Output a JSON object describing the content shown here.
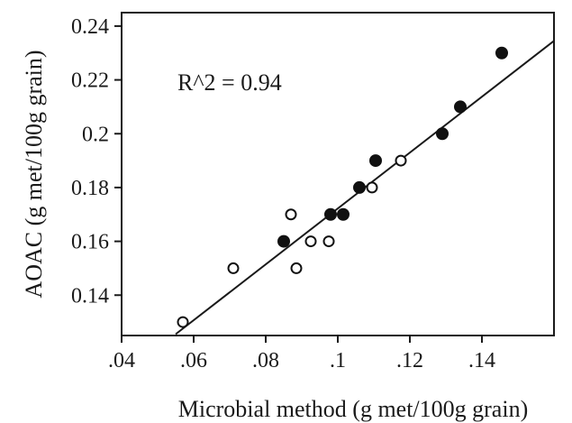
{
  "chart_data": {
    "type": "scatter",
    "title": "",
    "xlabel": "Microbial method (g met/100g grain)",
    "ylabel": "AOAC (g met/100g grain)",
    "xlim": [
      0.04,
      0.16
    ],
    "ylim": [
      0.125,
      0.245
    ],
    "x_ticks": [
      0.04,
      0.06,
      0.08,
      0.1,
      0.12,
      0.14
    ],
    "x_tick_labels": [
      ".04",
      ".06",
      ".08",
      ".1",
      ".12",
      ".14"
    ],
    "y_ticks": [
      0.14,
      0.16,
      0.18,
      0.2,
      0.22,
      0.24
    ],
    "y_tick_labels": [
      "0.14",
      "0.16",
      "0.18",
      "0.2",
      "0.22",
      "0.24"
    ],
    "annotation": "R^2 = 0.94",
    "grid": false,
    "series": [
      {
        "marker": "filled",
        "color": "#111111",
        "points": [
          {
            "x": 0.085,
            "y": 0.16
          },
          {
            "x": 0.098,
            "y": 0.17
          },
          {
            "x": 0.1015,
            "y": 0.17
          },
          {
            "x": 0.106,
            "y": 0.18
          },
          {
            "x": 0.1105,
            "y": 0.19
          },
          {
            "x": 0.129,
            "y": 0.2
          },
          {
            "x": 0.134,
            "y": 0.21
          },
          {
            "x": 0.1455,
            "y": 0.23
          }
        ]
      },
      {
        "marker": "open",
        "color": "#111111",
        "points": [
          {
            "x": 0.057,
            "y": 0.13
          },
          {
            "x": 0.071,
            "y": 0.15
          },
          {
            "x": 0.087,
            "y": 0.17
          },
          {
            "x": 0.0885,
            "y": 0.15
          },
          {
            "x": 0.0925,
            "y": 0.16
          },
          {
            "x": 0.0975,
            "y": 0.16
          },
          {
            "x": 0.1095,
            "y": 0.18
          },
          {
            "x": 0.1175,
            "y": 0.19
          }
        ]
      }
    ],
    "trendline": {
      "x1": 0.055,
      "y1": 0.1255,
      "x2": 0.16,
      "y2": 0.2345
    }
  }
}
